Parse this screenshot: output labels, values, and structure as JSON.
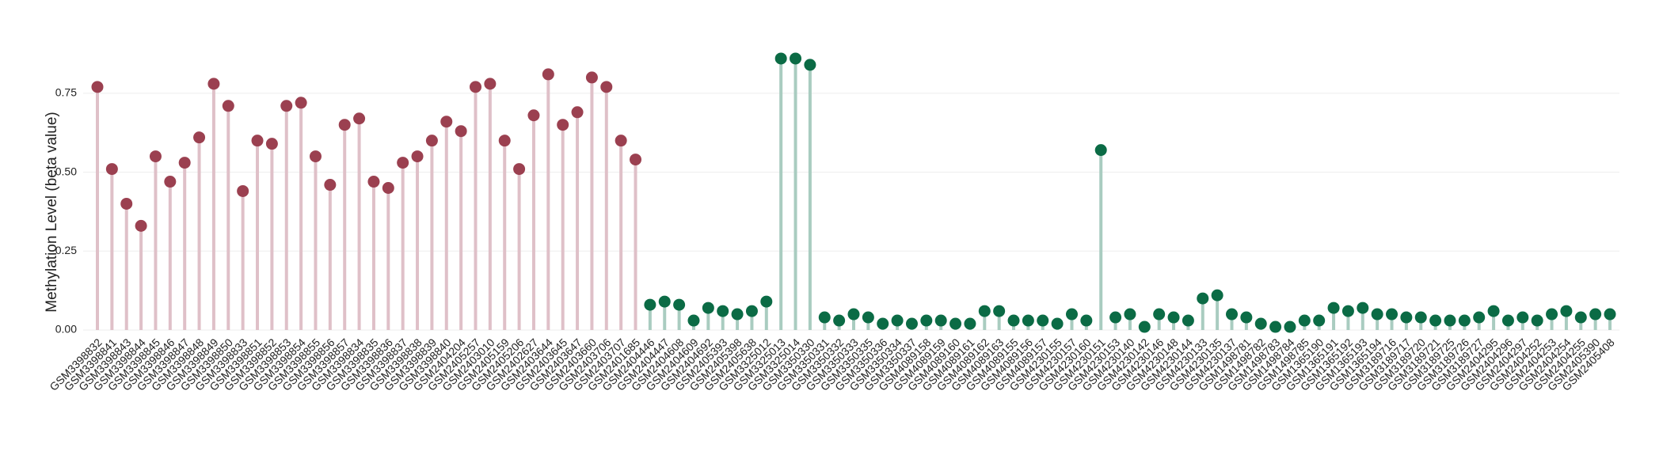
{
  "chart_data": {
    "type": "lollipop",
    "ylabel": "Methylation Level (beta value)",
    "ylim": [
      0,
      0.9
    ],
    "yticks": [
      {
        "value": 0,
        "label": "0.00"
      },
      {
        "value": 0.25,
        "label": "0.25"
      },
      {
        "value": 0.5,
        "label": "0.50"
      },
      {
        "value": 0.75,
        "label": "0.75"
      }
    ],
    "grid": true,
    "series": [
      {
        "color": "#9b4050",
        "stem_color": "#dfc0c8",
        "categories": [
          "GSM3398832",
          "GSM3398841",
          "GSM3398843",
          "GSM3398844",
          "GSM3398845",
          "GSM3398846",
          "GSM3398847",
          "GSM3398848",
          "GSM3398849",
          "GSM3398850",
          "GSM3398833",
          "GSM3398851",
          "GSM3398852",
          "GSM3398853",
          "GSM3398854",
          "GSM3398855",
          "GSM3398856",
          "GSM3398857",
          "GSM3398834",
          "GSM3398835",
          "GSM3398836",
          "GSM3398837",
          "GSM3398838",
          "GSM3398839",
          "GSM3398840",
          "GSM2404204",
          "GSM2405257",
          "GSM2403010",
          "GSM2405159",
          "GSM2405206",
          "GSM2402627",
          "GSM2403644",
          "GSM2403645",
          "GSM2403647",
          "GSM2403660",
          "GSM2403706",
          "GSM2403707",
          "GSM2401685"
        ],
        "values": [
          0.77,
          0.51,
          0.4,
          0.33,
          0.55,
          0.47,
          0.53,
          0.61,
          0.78,
          0.71,
          0.44,
          0.6,
          0.59,
          0.71,
          0.72,
          0.55,
          0.46,
          0.65,
          0.67,
          0.47,
          0.45,
          0.53,
          0.55,
          0.6,
          0.66,
          0.63,
          0.77,
          0.78,
          0.6,
          0.51,
          0.68,
          0.81,
          0.65,
          0.69,
          0.8,
          0.77,
          0.6,
          0.54
        ]
      },
      {
        "color": "#0b6b45",
        "stem_color": "#a9ccc0",
        "categories": [
          "GSM2404446",
          "GSM2404447",
          "GSM2404608",
          "GSM2404609",
          "GSM2404692",
          "GSM2405393",
          "GSM2405398",
          "GSM2405638",
          "GSM3325012",
          "GSM3325013",
          "GSM3325014",
          "GSM3350330",
          "GSM3350331",
          "GSM3350332",
          "GSM3350333",
          "GSM3350335",
          "GSM3350336",
          "GSM3350334",
          "GSM3350337",
          "GSM4089158",
          "GSM4089159",
          "GSM4089160",
          "GSM4089161",
          "GSM4089162",
          "GSM4089163",
          "GSM4089155",
          "GSM4089156",
          "GSM4089157",
          "GSM4230155",
          "GSM4230157",
          "GSM4230160",
          "GSM4230151",
          "GSM4230153",
          "GSM4230140",
          "GSM4230142",
          "GSM4230146",
          "GSM4230148",
          "GSM4230144",
          "GSM4230133",
          "GSM4230135",
          "GSM4230137",
          "GSM1498781",
          "GSM1498782",
          "GSM1498783",
          "GSM1498784",
          "GSM1498785",
          "GSM1365190",
          "GSM1365191",
          "GSM1365192",
          "GSM1365193",
          "GSM1365194",
          "GSM3189716",
          "GSM3189717",
          "GSM3189720",
          "GSM3189721",
          "GSM3189725",
          "GSM3189726",
          "GSM3189727",
          "GSM2404295",
          "GSM2404296",
          "GSM2404297",
          "GSM2404252",
          "GSM2404253",
          "GSM2404254",
          "GSM2404255",
          "GSM2405390",
          "GSM2405408"
        ],
        "values": [
          0.08,
          0.09,
          0.08,
          0.03,
          0.07,
          0.06,
          0.05,
          0.06,
          0.09,
          0.86,
          0.86,
          0.84,
          0.04,
          0.03,
          0.05,
          0.04,
          0.02,
          0.03,
          0.02,
          0.03,
          0.03,
          0.02,
          0.02,
          0.06,
          0.06,
          0.03,
          0.03,
          0.03,
          0.02,
          0.05,
          0.03,
          0.57,
          0.04,
          0.05,
          0.01,
          0.05,
          0.04,
          0.03,
          0.1,
          0.11,
          0.05,
          0.04,
          0.02,
          0.01,
          0.01,
          0.03,
          0.03,
          0.07,
          0.06,
          0.07,
          0.05,
          0.05,
          0.04,
          0.04,
          0.03,
          0.03,
          0.03,
          0.04,
          0.06,
          0.03,
          0.04,
          0.03,
          0.05,
          0.06,
          0.04,
          0.05,
          0.05
        ]
      }
    ]
  }
}
